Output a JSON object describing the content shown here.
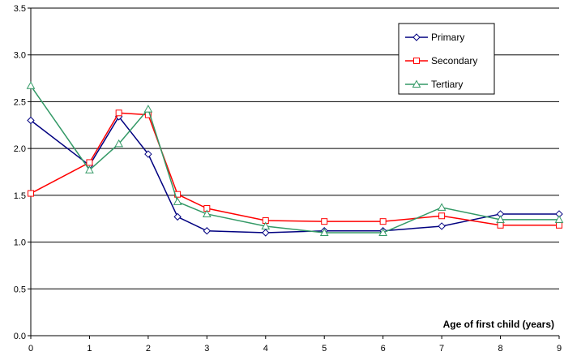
{
  "chart_data": {
    "type": "line",
    "title": "",
    "xlabel": "Age of first child (years)",
    "ylabel": "",
    "x": [
      0,
      1,
      1.5,
      2,
      2.5,
      3,
      4,
      5,
      6,
      7,
      8,
      9
    ],
    "xlim": [
      0,
      9
    ],
    "ylim": [
      0,
      3.5
    ],
    "xticks": [
      "0",
      "1",
      "2",
      "3",
      "4",
      "5",
      "6",
      "7",
      "8",
      "9"
    ],
    "yticks": [
      "0.0",
      "0.5",
      "1.0",
      "1.5",
      "2.0",
      "2.5",
      "3.0",
      "3.5"
    ],
    "grid": true,
    "legend_position": "top-right",
    "series": [
      {
        "name": "Primary",
        "color": "#000080",
        "marker": "diamond",
        "values": [
          2.3,
          1.82,
          2.34,
          1.94,
          1.27,
          1.12,
          1.1,
          1.12,
          1.12,
          1.17,
          1.3,
          1.3
        ]
      },
      {
        "name": "Secondary",
        "color": "#ff0000",
        "marker": "square",
        "values": [
          1.52,
          1.85,
          2.38,
          2.36,
          1.51,
          1.36,
          1.23,
          1.22,
          1.22,
          1.28,
          1.18,
          1.18
        ]
      },
      {
        "name": "Tertiary",
        "color": "#339966",
        "marker": "triangle",
        "values": [
          2.67,
          1.77,
          2.05,
          2.42,
          1.43,
          1.3,
          1.17,
          1.1,
          1.1,
          1.37,
          1.24,
          1.24
        ]
      }
    ]
  }
}
